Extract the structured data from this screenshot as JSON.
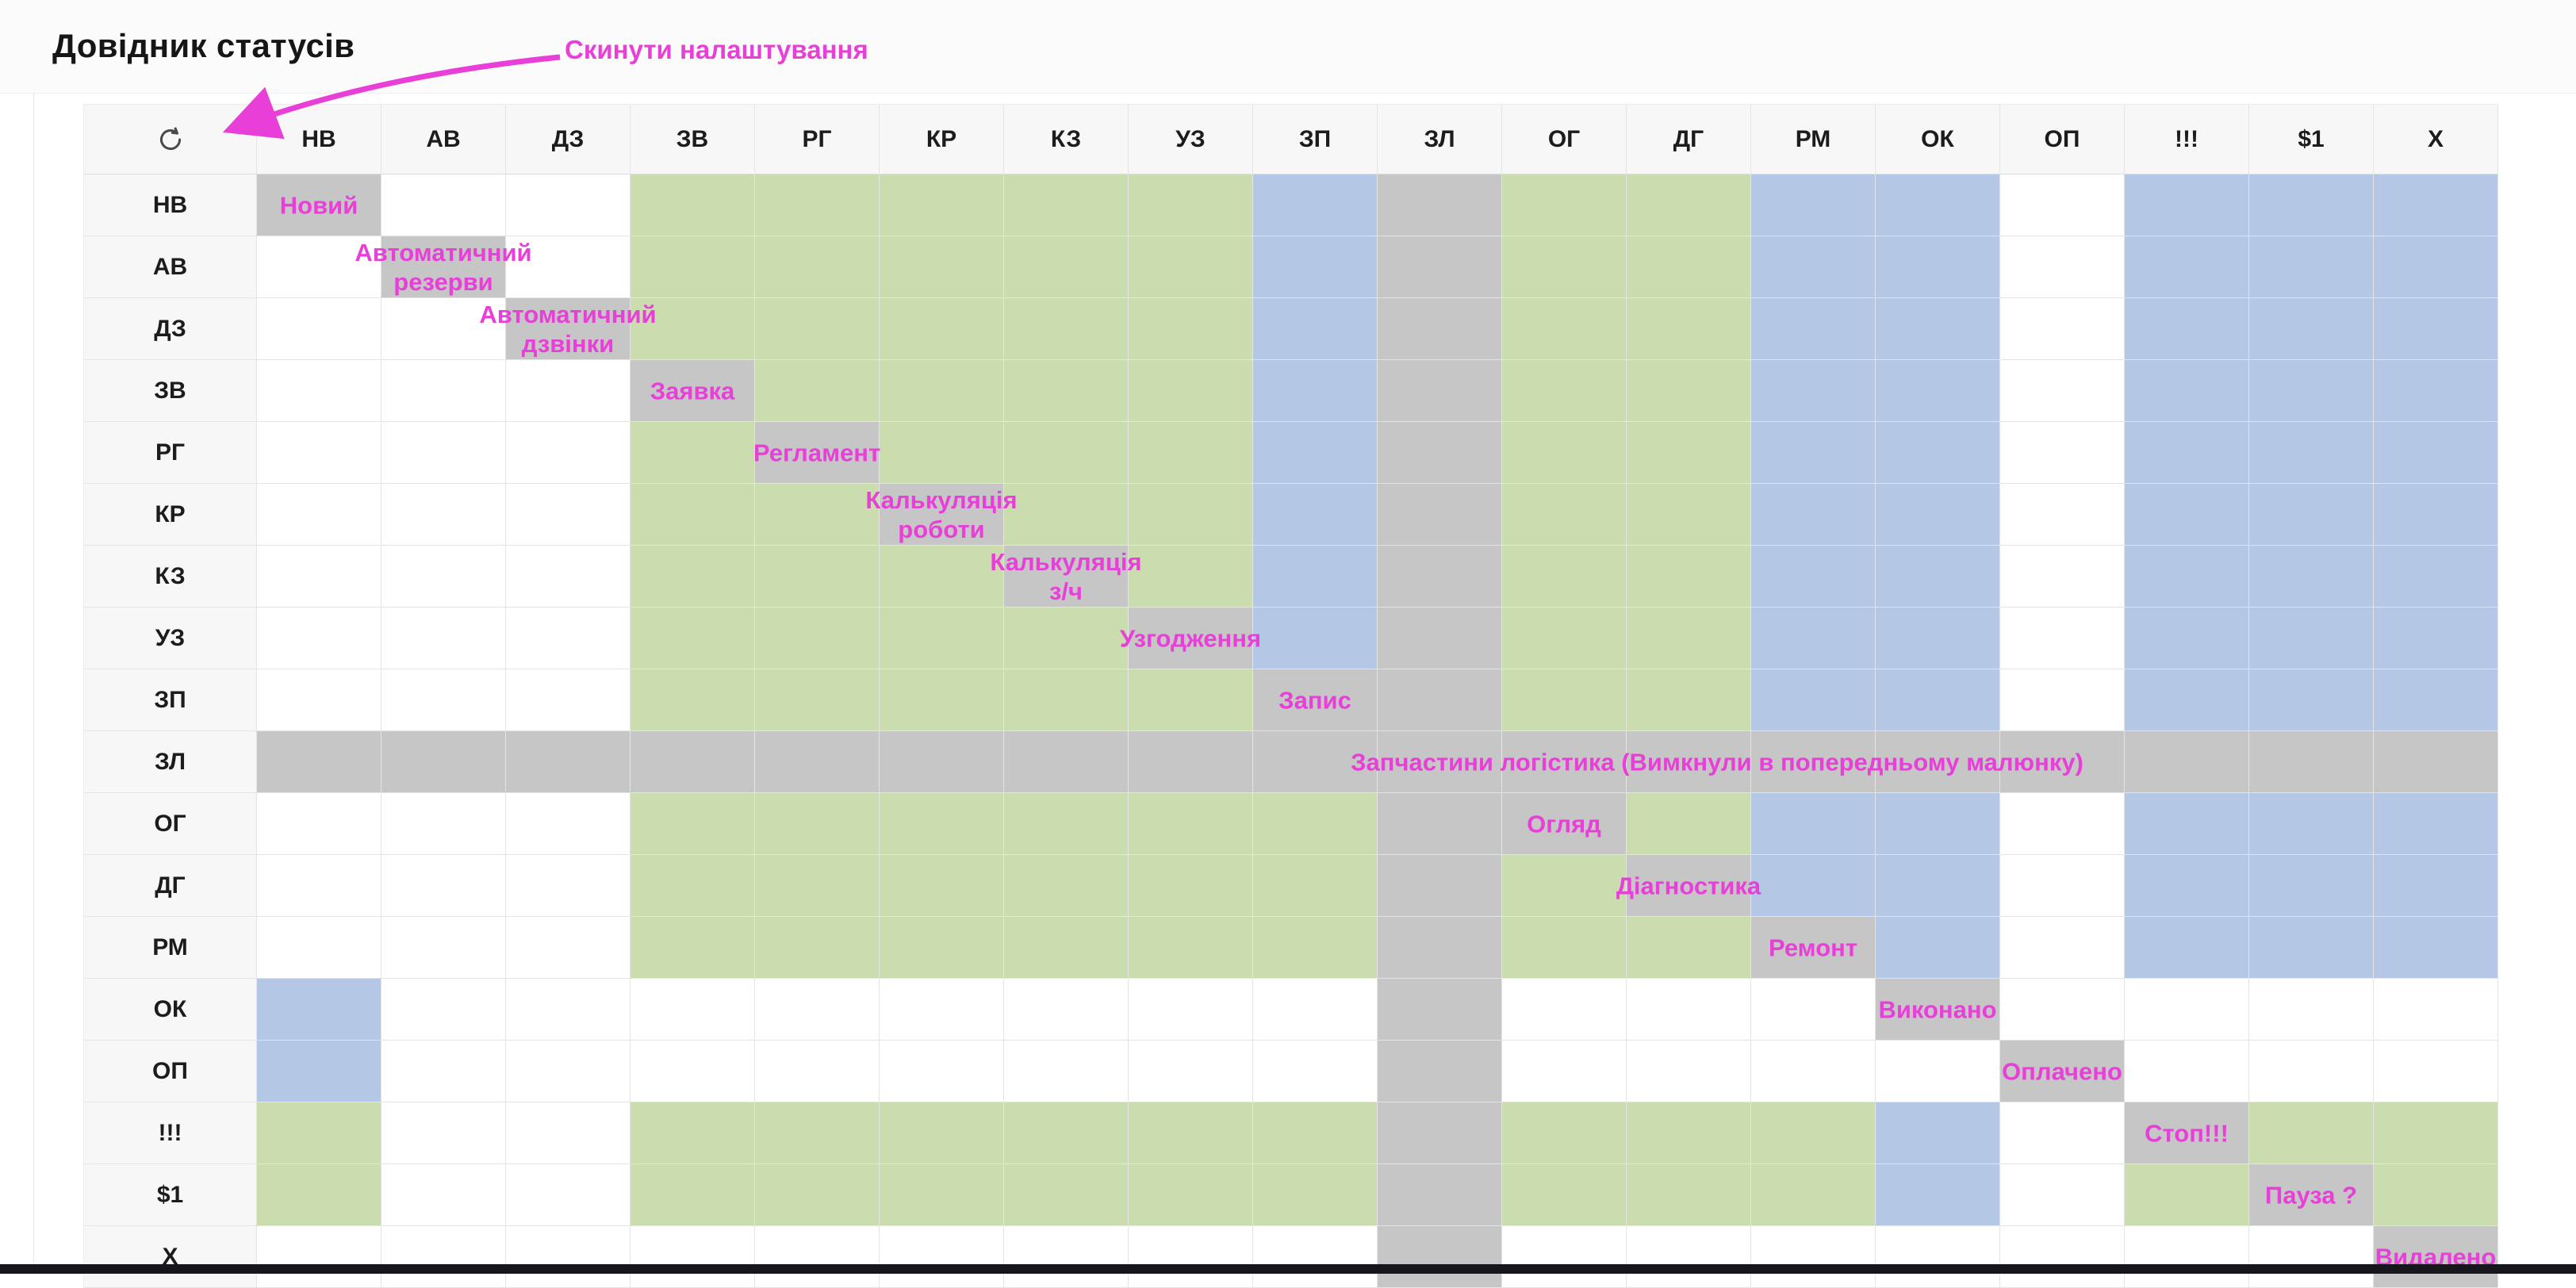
{
  "header": {
    "title": "Довідник статусів",
    "annotation": "Скинути налаштування"
  },
  "colors": {
    "green": "#cbdcae",
    "blue": "#b4c7e5",
    "gray": "#c6c6c6",
    "magenta": "#e83fd8",
    "headerbg": "#f7f7f7",
    "border": "#e4e4e4",
    "bottombar": "#16161b"
  },
  "icons": {
    "corner": "refresh-icon"
  },
  "matrix": {
    "columns": [
      "НВ",
      "АВ",
      "ДЗ",
      "ЗВ",
      "РГ",
      "КР",
      "КЗ",
      "УЗ",
      "ЗП",
      "ЗЛ",
      "ОГ",
      "ДГ",
      "РМ",
      "ОК",
      "ОП",
      "!!!",
      "$1",
      "Х"
    ],
    "rows": [
      {
        "id": "НВ",
        "label_lines": [
          "Новий"
        ],
        "cells": [
          "D",
          "W",
          "W",
          "G",
          "G",
          "G",
          "G",
          "G",
          "B",
          "Y",
          "G",
          "G",
          "B",
          "B",
          "W",
          "B",
          "B",
          "B"
        ]
      },
      {
        "id": "АВ",
        "label_lines": [
          "Автоматичний",
          "резерви"
        ],
        "cells": [
          "W",
          "D",
          "W",
          "G",
          "G",
          "G",
          "G",
          "G",
          "B",
          "Y",
          "G",
          "G",
          "B",
          "B",
          "W",
          "B",
          "B",
          "B"
        ]
      },
      {
        "id": "ДЗ",
        "label_lines": [
          "Автоматичний",
          "дзвінки"
        ],
        "cells": [
          "W",
          "W",
          "D",
          "G",
          "G",
          "G",
          "G",
          "G",
          "B",
          "Y",
          "G",
          "G",
          "B",
          "B",
          "W",
          "B",
          "B",
          "B"
        ]
      },
      {
        "id": "ЗВ",
        "label_lines": [
          "Заявка"
        ],
        "cells": [
          "W",
          "W",
          "W",
          "D",
          "G",
          "G",
          "G",
          "G",
          "B",
          "Y",
          "G",
          "G",
          "B",
          "B",
          "W",
          "B",
          "B",
          "B"
        ]
      },
      {
        "id": "РГ",
        "label_lines": [
          "Регламент"
        ],
        "cells": [
          "W",
          "W",
          "W",
          "G",
          "D",
          "G",
          "G",
          "G",
          "B",
          "Y",
          "G",
          "G",
          "B",
          "B",
          "W",
          "B",
          "B",
          "B"
        ]
      },
      {
        "id": "КР",
        "label_lines": [
          "Калькуляція",
          "роботи"
        ],
        "cells": [
          "W",
          "W",
          "W",
          "G",
          "G",
          "D",
          "G",
          "G",
          "B",
          "Y",
          "G",
          "G",
          "B",
          "B",
          "W",
          "B",
          "B",
          "B"
        ]
      },
      {
        "id": "КЗ",
        "label_lines": [
          "Калькуляція",
          "з/ч"
        ],
        "cells": [
          "W",
          "W",
          "W",
          "G",
          "G",
          "G",
          "D",
          "G",
          "B",
          "Y",
          "G",
          "G",
          "B",
          "B",
          "W",
          "B",
          "B",
          "B"
        ]
      },
      {
        "id": "УЗ",
        "label_lines": [
          "Узгодження"
        ],
        "cells": [
          "W",
          "W",
          "W",
          "G",
          "G",
          "G",
          "G",
          "D",
          "B",
          "Y",
          "G",
          "G",
          "B",
          "B",
          "W",
          "B",
          "B",
          "B"
        ]
      },
      {
        "id": "ЗП",
        "label_lines": [
          "Запис"
        ],
        "cells": [
          "W",
          "W",
          "W",
          "G",
          "G",
          "G",
          "G",
          "G",
          "D",
          "Y",
          "G",
          "G",
          "B",
          "B",
          "W",
          "B",
          "B",
          "B"
        ]
      },
      {
        "id": "ЗЛ",
        "label_lines": [
          "Запчастини логістика (Вимкнули в попередньому малюнку)"
        ],
        "cells": [
          "Y",
          "Y",
          "Y",
          "Y",
          "Y",
          "Y",
          "Y",
          "Y",
          "Y",
          "D",
          "Y",
          "Y",
          "Y",
          "Y",
          "Y",
          "Y",
          "Y",
          "Y"
        ]
      },
      {
        "id": "ОГ",
        "label_lines": [
          "Огляд"
        ],
        "cells": [
          "W",
          "W",
          "W",
          "G",
          "G",
          "G",
          "G",
          "G",
          "G",
          "Y",
          "D",
          "G",
          "B",
          "B",
          "W",
          "B",
          "B",
          "B"
        ]
      },
      {
        "id": "ДГ",
        "label_lines": [
          "Діагностика"
        ],
        "cells": [
          "W",
          "W",
          "W",
          "G",
          "G",
          "G",
          "G",
          "G",
          "G",
          "Y",
          "G",
          "D",
          "B",
          "B",
          "W",
          "B",
          "B",
          "B"
        ]
      },
      {
        "id": "РМ",
        "label_lines": [
          "Ремонт"
        ],
        "cells": [
          "W",
          "W",
          "W",
          "G",
          "G",
          "G",
          "G",
          "G",
          "G",
          "Y",
          "G",
          "G",
          "D",
          "B",
          "W",
          "B",
          "B",
          "B"
        ]
      },
      {
        "id": "ОК",
        "label_lines": [
          "Виконано"
        ],
        "cells": [
          "B",
          "W",
          "W",
          "W",
          "W",
          "W",
          "W",
          "W",
          "W",
          "Y",
          "W",
          "W",
          "W",
          "D",
          "W",
          "W",
          "W",
          "W"
        ]
      },
      {
        "id": "ОП",
        "label_lines": [
          "Оплачено"
        ],
        "cells": [
          "B",
          "W",
          "W",
          "W",
          "W",
          "W",
          "W",
          "W",
          "W",
          "Y",
          "W",
          "W",
          "W",
          "W",
          "D",
          "W",
          "W",
          "W"
        ]
      },
      {
        "id": "!!!",
        "label_lines": [
          "Стоп!!!"
        ],
        "cells": [
          "G",
          "W",
          "W",
          "G",
          "G",
          "G",
          "G",
          "G",
          "G",
          "Y",
          "G",
          "G",
          "G",
          "B",
          "W",
          "D",
          "G",
          "G"
        ]
      },
      {
        "id": "$1",
        "label_lines": [
          "Пауза ?"
        ],
        "cells": [
          "G",
          "W",
          "W",
          "G",
          "G",
          "G",
          "G",
          "G",
          "G",
          "Y",
          "G",
          "G",
          "G",
          "B",
          "W",
          "G",
          "D",
          "G"
        ]
      },
      {
        "id": "Х",
        "label_lines": [
          "Видалено"
        ],
        "cells": [
          "W",
          "W",
          "W",
          "W",
          "W",
          "W",
          "W",
          "W",
          "W",
          "Y",
          "W",
          "W",
          "W",
          "W",
          "W",
          "W",
          "W",
          "D"
        ]
      }
    ]
  }
}
